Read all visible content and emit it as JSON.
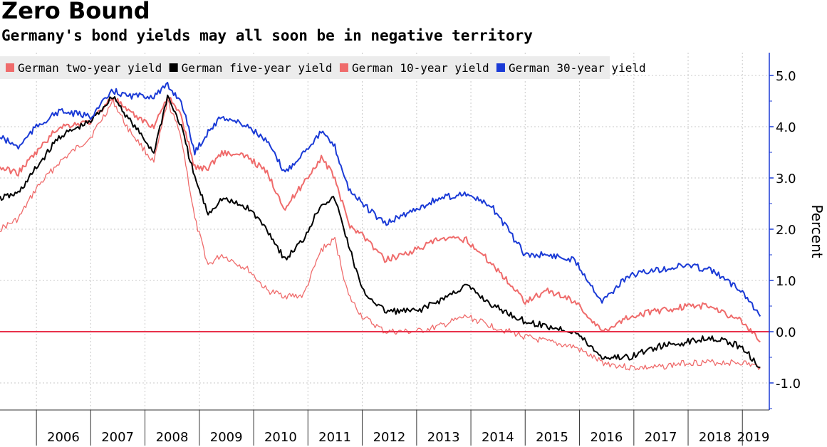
{
  "chart_data": {
    "type": "line",
    "title": "Zero Bound",
    "subtitle": "Germany's bond yields may all soon be in negative territory",
    "ylabel": "Percent",
    "ylim": [
      -1.5,
      5.5
    ],
    "yticks": [
      5.0,
      4.0,
      3.0,
      2.0,
      1.0,
      0.0,
      -1.0
    ],
    "ytick_labels": [
      "5.0",
      "4.0",
      "3.0",
      "2.0",
      "1.0",
      "0.0",
      "-1.0"
    ],
    "xlim": [
      "2005-05-01",
      "2019-07-01"
    ],
    "x_boundaries": [
      "2006-01-01",
      "2007-01-01",
      "2008-01-01",
      "2009-01-01",
      "2010-01-01",
      "2011-01-01",
      "2012-01-01",
      "2013-01-01",
      "2014-01-01",
      "2015-01-01",
      "2016-01-01",
      "2017-01-01",
      "2018-01-01",
      "2019-01-01"
    ],
    "x_labels": [
      {
        "label": "2006",
        "date": "2006-07-01"
      },
      {
        "label": "2007",
        "date": "2007-07-01"
      },
      {
        "label": "2008",
        "date": "2008-07-01"
      },
      {
        "label": "2009",
        "date": "2009-07-01"
      },
      {
        "label": "2010",
        "date": "2010-07-01"
      },
      {
        "label": "2011",
        "date": "2011-07-01"
      },
      {
        "label": "2012",
        "date": "2012-07-01"
      },
      {
        "label": "2013",
        "date": "2013-07-01"
      },
      {
        "label": "2014",
        "date": "2014-07-01"
      },
      {
        "label": "2015",
        "date": "2015-07-01"
      },
      {
        "label": "2016",
        "date": "2016-07-01"
      },
      {
        "label": "2017",
        "date": "2017-07-01"
      },
      {
        "label": "2018",
        "date": "2018-07-01"
      },
      {
        "label": "2019",
        "date": "2019-03-15"
      }
    ],
    "zero_line": {
      "value": 0.0,
      "color": "#e8304a"
    },
    "grid": true,
    "legend_position": "top-left",
    "series": [
      {
        "name": "German two-year yield",
        "color": "#ef6b6b",
        "x": [
          "2005-05",
          "2005-09",
          "2006-01",
          "2006-06",
          "2007-01",
          "2007-06",
          "2007-09",
          "2008-03",
          "2008-06",
          "2008-09",
          "2008-12",
          "2009-03",
          "2009-06",
          "2009-12",
          "2010-04",
          "2010-08",
          "2010-12",
          "2011-04",
          "2011-07",
          "2011-10",
          "2012-01",
          "2012-06",
          "2013-01",
          "2013-06",
          "2013-12",
          "2014-06",
          "2015-01",
          "2015-06",
          "2015-12",
          "2016-06",
          "2016-12",
          "2017-06",
          "2018-01",
          "2018-06",
          "2019-01",
          "2019-05"
        ],
        "y": [
          2.0,
          2.2,
          2.8,
          3.3,
          3.8,
          4.5,
          4.0,
          3.3,
          4.5,
          3.8,
          2.2,
          1.3,
          1.5,
          1.2,
          0.8,
          0.7,
          0.7,
          1.6,
          1.8,
          0.7,
          0.3,
          0.0,
          0.0,
          0.1,
          0.3,
          0.1,
          -0.1,
          -0.2,
          -0.3,
          -0.6,
          -0.7,
          -0.7,
          -0.6,
          -0.6,
          -0.6,
          -0.7
        ]
      },
      {
        "name": "German five-year yield",
        "color": "#000000",
        "x": [
          "2005-05",
          "2005-09",
          "2006-01",
          "2006-06",
          "2007-01",
          "2007-06",
          "2007-09",
          "2008-03",
          "2008-06",
          "2008-09",
          "2008-12",
          "2009-03",
          "2009-06",
          "2009-12",
          "2010-04",
          "2010-08",
          "2010-12",
          "2011-04",
          "2011-07",
          "2011-10",
          "2012-01",
          "2012-06",
          "2013-01",
          "2013-06",
          "2013-12",
          "2014-06",
          "2015-01",
          "2015-06",
          "2015-12",
          "2016-06",
          "2016-12",
          "2017-06",
          "2018-01",
          "2018-06",
          "2019-01",
          "2019-05"
        ],
        "y": [
          2.6,
          2.7,
          3.2,
          3.8,
          4.1,
          4.6,
          4.2,
          3.5,
          4.6,
          4.0,
          3.0,
          2.3,
          2.6,
          2.4,
          2.0,
          1.4,
          1.8,
          2.5,
          2.6,
          1.7,
          0.8,
          0.4,
          0.4,
          0.6,
          0.9,
          0.5,
          0.2,
          0.1,
          0.0,
          -0.5,
          -0.5,
          -0.3,
          -0.2,
          -0.1,
          -0.3,
          -0.7
        ]
      },
      {
        "name": "German 10-year yield",
        "color": "#ef6b6b",
        "x": [
          "2005-05",
          "2005-09",
          "2006-01",
          "2006-06",
          "2007-01",
          "2007-06",
          "2007-09",
          "2008-03",
          "2008-06",
          "2008-09",
          "2008-12",
          "2009-03",
          "2009-06",
          "2009-12",
          "2010-04",
          "2010-08",
          "2010-12",
          "2011-04",
          "2011-07",
          "2011-10",
          "2012-01",
          "2012-06",
          "2013-01",
          "2013-06",
          "2013-12",
          "2014-06",
          "2015-01",
          "2015-06",
          "2015-12",
          "2016-06",
          "2016-12",
          "2017-06",
          "2018-01",
          "2018-06",
          "2019-01",
          "2019-05"
        ],
        "y": [
          3.2,
          3.1,
          3.5,
          4.0,
          4.1,
          4.6,
          4.3,
          4.0,
          4.6,
          4.2,
          3.2,
          3.2,
          3.5,
          3.4,
          3.1,
          2.4,
          2.9,
          3.4,
          3.0,
          2.1,
          1.9,
          1.4,
          1.6,
          1.8,
          1.8,
          1.3,
          0.6,
          0.8,
          0.6,
          0.0,
          0.3,
          0.4,
          0.5,
          0.5,
          0.2,
          -0.2
        ]
      },
      {
        "name": "German 30-year yield",
        "color": "#1a3ad6",
        "x": [
          "2005-05",
          "2005-09",
          "2006-01",
          "2006-06",
          "2007-01",
          "2007-06",
          "2007-09",
          "2008-03",
          "2008-06",
          "2008-09",
          "2008-12",
          "2009-03",
          "2009-06",
          "2009-12",
          "2010-04",
          "2010-08",
          "2010-12",
          "2011-04",
          "2011-07",
          "2011-10",
          "2012-01",
          "2012-06",
          "2013-01",
          "2013-06",
          "2013-12",
          "2014-06",
          "2015-01",
          "2015-06",
          "2015-12",
          "2016-06",
          "2016-12",
          "2017-06",
          "2018-01",
          "2018-06",
          "2019-01",
          "2019-05"
        ],
        "y": [
          3.8,
          3.6,
          4.0,
          4.3,
          4.2,
          4.7,
          4.6,
          4.6,
          4.8,
          4.5,
          3.5,
          3.9,
          4.2,
          4.0,
          3.7,
          3.1,
          3.5,
          3.9,
          3.6,
          2.8,
          2.5,
          2.1,
          2.4,
          2.6,
          2.7,
          2.4,
          1.5,
          1.5,
          1.4,
          0.6,
          1.1,
          1.2,
          1.3,
          1.2,
          0.8,
          0.3
        ]
      }
    ]
  }
}
